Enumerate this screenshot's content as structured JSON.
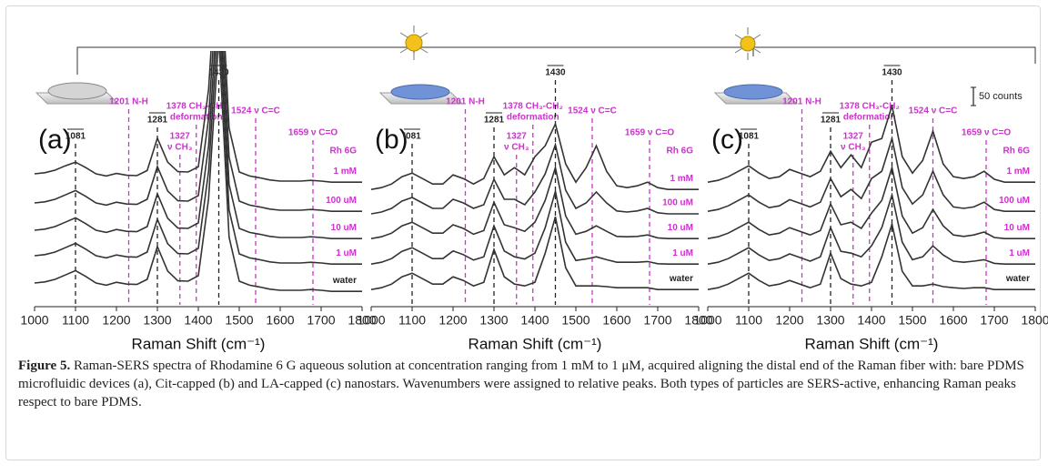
{
  "chart_data": [
    {
      "type": "line",
      "panel_label": "(a)",
      "x_label": "Raman Shift (cm⁻¹)",
      "analyte_label": "Rh 6G",
      "xlim": [
        1000,
        1800
      ],
      "xticks": [
        1000,
        1100,
        1200,
        1300,
        1400,
        1500,
        1600,
        1700,
        1800
      ],
      "x": [
        1000,
        1025,
        1050,
        1075,
        1100,
        1125,
        1150,
        1175,
        1200,
        1225,
        1250,
        1275,
        1300,
        1325,
        1350,
        1375,
        1400,
        1425,
        1450,
        1475,
        1500,
        1525,
        1550,
        1575,
        1600,
        1625,
        1650,
        1675,
        1700,
        1725,
        1750,
        1775,
        1800
      ],
      "annotations": [
        {
          "x": 1100,
          "label": [
            "1081"
          ],
          "color": "#222222"
        },
        {
          "x": 1230,
          "label": [
            "1201 N-H"
          ],
          "color": "#cc33cc"
        },
        {
          "x": 1300,
          "label": [
            "1281"
          ],
          "color": "#222222"
        },
        {
          "x": 1355,
          "label": [
            "1327",
            "ν CH₃"
          ],
          "color": "#cc33cc"
        },
        {
          "x": 1395,
          "label": [
            "1378 CH₃-CH₂",
            "deformation"
          ],
          "color": "#cc33cc"
        },
        {
          "x": 1450,
          "label": [
            "1430"
          ],
          "color": "#222222"
        },
        {
          "x": 1540,
          "label": [
            "1524 ν C=C"
          ],
          "color": "#cc33cc"
        },
        {
          "x": 1680,
          "label": [
            "1659 ν C=O"
          ],
          "color": "#cc33cc"
        }
      ],
      "series": [
        {
          "name": "1 mM",
          "color": "#333333",
          "label_color": "#cc33cc",
          "values": [
            360,
            363,
            370,
            382,
            392,
            377,
            360,
            354,
            361,
            356,
            355,
            369,
            458,
            392,
            366,
            365,
            379,
            592,
            1037,
            486,
            365,
            354,
            349,
            343,
            340,
            340,
            340,
            342,
            340,
            337,
            337,
            337,
            337
          ]
        },
        {
          "name": "100 uM",
          "color": "#333333",
          "label_color": "#cc33cc",
          "values": [
            280,
            283,
            290,
            302,
            314,
            298,
            280,
            274,
            282,
            277,
            276,
            290,
            380,
            313,
            286,
            285,
            300,
            512,
            957,
            406,
            285,
            274,
            269,
            263,
            260,
            260,
            260,
            262,
            260,
            257,
            257,
            257,
            257
          ]
        },
        {
          "name": "10 uM",
          "color": "#333333",
          "label_color": "#cc33cc",
          "values": [
            205,
            208,
            215,
            227,
            239,
            223,
            205,
            199,
            207,
            202,
            201,
            215,
            305,
            238,
            211,
            210,
            225,
            437,
            882,
            331,
            210,
            199,
            194,
            188,
            185,
            185,
            185,
            187,
            185,
            182,
            182,
            182,
            182
          ]
        },
        {
          "name": "1 uM",
          "color": "#333333",
          "label_color": "#cc33cc",
          "values": [
            135,
            138,
            145,
            157,
            169,
            153,
            135,
            129,
            137,
            132,
            131,
            145,
            235,
            168,
            141,
            140,
            155,
            367,
            812,
            261,
            140,
            129,
            124,
            118,
            115,
            115,
            115,
            117,
            115,
            112,
            112,
            112,
            112
          ]
        },
        {
          "name": "water",
          "color": "#333333",
          "label_color": "#222222",
          "values": [
            60,
            63,
            70,
            82,
            94,
            78,
            60,
            54,
            62,
            57,
            56,
            70,
            160,
            93,
            66,
            65,
            80,
            292,
            737,
            186,
            65,
            54,
            49,
            43,
            40,
            40,
            40,
            42,
            40,
            37,
            37,
            37,
            37
          ]
        }
      ]
    },
    {
      "type": "line",
      "panel_label": "(b)",
      "x_label": "Raman Shift (cm⁻¹)",
      "analyte_label": "Rh 6G",
      "xlim": [
        1000,
        1800
      ],
      "xticks": [
        1000,
        1100,
        1200,
        1300,
        1400,
        1500,
        1600,
        1700,
        1800
      ],
      "x": [
        1000,
        1025,
        1050,
        1075,
        1100,
        1125,
        1150,
        1175,
        1200,
        1225,
        1250,
        1275,
        1300,
        1325,
        1350,
        1375,
        1400,
        1425,
        1450,
        1475,
        1500,
        1525,
        1550,
        1575,
        1600,
        1625,
        1650,
        1675,
        1700,
        1725,
        1750,
        1775,
        1800
      ],
      "annotations": [
        {
          "x": 1100,
          "label": [
            "I081"
          ],
          "color": "#222222"
        },
        {
          "x": 1230,
          "label": [
            "1201 N-H"
          ],
          "color": "#cc33cc"
        },
        {
          "x": 1300,
          "label": [
            "1281"
          ],
          "color": "#222222"
        },
        {
          "x": 1355,
          "label": [
            "1327",
            "ν CH₃"
          ],
          "color": "#cc33cc"
        },
        {
          "x": 1395,
          "label": [
            "1378 CH₃-CH₂",
            "deformation"
          ],
          "color": "#cc33cc"
        },
        {
          "x": 1450,
          "label": [
            "1430"
          ],
          "color": "#222222"
        },
        {
          "x": 1540,
          "label": [
            "1524 ν C=C"
          ],
          "color": "#cc33cc"
        },
        {
          "x": 1680,
          "label": [
            "1659 ν C=O"
          ],
          "color": "#cc33cc"
        }
      ],
      "series": [
        {
          "name": "1 mM",
          "color": "#333333",
          "label_color": "#cc33cc",
          "values": [
            317,
            322,
            332,
            352,
            362,
            347,
            332,
            332,
            357,
            347,
            332,
            347,
            407,
            357,
            377,
            357,
            407,
            437,
            497,
            387,
            337,
            377,
            437,
            367,
            327,
            322,
            327,
            337,
            322,
            317,
            317,
            317,
            317
          ]
        },
        {
          "name": "100 uM",
          "color": "#333333",
          "label_color": "#cc33cc",
          "values": [
            250,
            255,
            265,
            285,
            295,
            280,
            265,
            265,
            290,
            280,
            265,
            275,
            345,
            290,
            290,
            275,
            310,
            360,
            440,
            315,
            265,
            280,
            310,
            280,
            258,
            255,
            258,
            265,
            253,
            250,
            250,
            250,
            250
          ]
        },
        {
          "name": "10 uM",
          "color": "#333333",
          "label_color": "#cc33cc",
          "values": [
            182,
            187,
            197,
            217,
            227,
            212,
            197,
            197,
            220,
            210,
            194,
            204,
            282,
            220,
            212,
            202,
            227,
            287,
            377,
            244,
            194,
            202,
            217,
            202,
            188,
            187,
            188,
            192,
            184,
            182,
            182,
            182,
            182
          ]
        },
        {
          "name": "1 uM",
          "color": "#333333",
          "label_color": "#cc33cc",
          "values": [
            112,
            117,
            127,
            147,
            157,
            142,
            127,
            127,
            148,
            138,
            123,
            132,
            217,
            148,
            132,
            126,
            142,
            212,
            312,
            172,
            122,
            126,
            132,
            124,
            117,
            117,
            117,
            119,
            113,
            112,
            112,
            112,
            112
          ]
        },
        {
          "name": "water",
          "color": "#333333",
          "label_color": "#222222",
          "values": [
            42,
            47,
            57,
            77,
            87,
            72,
            57,
            57,
            77,
            67,
            52,
            62,
            152,
            77,
            57,
            52,
            62,
            142,
            242,
            102,
            52,
            52,
            52,
            50,
            47,
            47,
            47,
            47,
            42,
            42,
            42,
            42,
            42
          ]
        }
      ]
    },
    {
      "type": "line",
      "panel_label": "(c)",
      "x_label": "Raman Shift (cm⁻¹)",
      "analyte_label": "Rh 6G",
      "scale_bar": {
        "value": 50,
        "label": "50 counts"
      },
      "xlim": [
        1000,
        1800
      ],
      "xticks": [
        1000,
        1100,
        1200,
        1300,
        1400,
        1500,
        1600,
        1700,
        1800
      ],
      "x": [
        1000,
        1025,
        1050,
        1075,
        1100,
        1125,
        1150,
        1175,
        1200,
        1225,
        1250,
        1275,
        1300,
        1325,
        1350,
        1375,
        1400,
        1425,
        1450,
        1475,
        1500,
        1525,
        1550,
        1575,
        1600,
        1625,
        1650,
        1675,
        1700,
        1725,
        1750,
        1775,
        1800
      ],
      "annotations": [
        {
          "x": 1100,
          "label": [
            "1081"
          ],
          "color": "#222222"
        },
        {
          "x": 1230,
          "label": [
            "1201 N-H"
          ],
          "color": "#cc33cc"
        },
        {
          "x": 1300,
          "label": [
            "1281"
          ],
          "color": "#222222"
        },
        {
          "x": 1355,
          "label": [
            "1327",
            "ν CH₃"
          ],
          "color": "#cc33cc"
        },
        {
          "x": 1395,
          "label": [
            "1378 CH₃-CH₂",
            "deformation"
          ],
          "color": "#cc33cc"
        },
        {
          "x": 1450,
          "label": [
            "1430"
          ],
          "color": "#222222"
        },
        {
          "x": 1550,
          "label": [
            "1524 ν C=C"
          ],
          "color": "#cc33cc"
        },
        {
          "x": 1680,
          "label": [
            "1659 ν C=O"
          ],
          "color": "#cc33cc"
        }
      ],
      "series": [
        {
          "name": "1 mM",
          "color": "#333333",
          "label_color": "#cc33cc",
          "values": [
            337,
            342,
            352,
            367,
            382,
            362,
            347,
            352,
            372,
            362,
            352,
            367,
            422,
            377,
            412,
            377,
            447,
            457,
            547,
            407,
            362,
            397,
            477,
            387,
            352,
            347,
            352,
            367,
            345,
            337,
            337,
            337,
            337
          ]
        },
        {
          "name": "100 uM",
          "color": "#333333",
          "label_color": "#cc33cc",
          "values": [
            257,
            262,
            272,
            287,
            302,
            282,
            267,
            272,
            289,
            279,
            269,
            282,
            347,
            297,
            317,
            292,
            347,
            367,
            457,
            322,
            277,
            302,
            367,
            302,
            269,
            265,
            269,
            282,
            262,
            257,
            257,
            257,
            257
          ]
        },
        {
          "name": "10 uM",
          "color": "#333333",
          "label_color": "#cc33cc",
          "values": [
            182,
            187,
            197,
            212,
            227,
            207,
            192,
            197,
            212,
            202,
            192,
            204,
            277,
            220,
            227,
            210,
            252,
            287,
            377,
            244,
            197,
            212,
            262,
            217,
            192,
            188,
            192,
            200,
            185,
            182,
            182,
            182,
            182
          ]
        },
        {
          "name": "1 uM",
          "color": "#333333",
          "label_color": "#cc33cc",
          "values": [
            112,
            117,
            127,
            142,
            157,
            137,
            122,
            127,
            140,
            130,
            120,
            132,
            212,
            147,
            142,
            132,
            162,
            212,
            302,
            172,
            124,
            132,
            162,
            137,
            120,
            117,
            120,
            124,
            114,
            112,
            112,
            112,
            112
          ]
        },
        {
          "name": "water",
          "color": "#333333",
          "label_color": "#222222",
          "values": [
            42,
            47,
            57,
            72,
            87,
            67,
            52,
            57,
            67,
            57,
            47,
            57,
            142,
            72,
            57,
            52,
            62,
            132,
            222,
            92,
            52,
            52,
            57,
            50,
            47,
            45,
            47,
            47,
            42,
            42,
            42,
            42,
            42
          ]
        }
      ]
    }
  ],
  "caption": {
    "label": "Figure 5.",
    "text": "Raman-SERS spectra of Rhodamine 6 G aqueous solution at concentration ranging from 1 mM to 1 μM, acquired aligning the distal end of the Raman fiber with: bare PDMS microfluidic devices (a), Cit-capped (b) and LA-capped (c) nanostars. Wavenumbers were assigned to relative peaks. Both types of particles are SERS-active, enhancing Raman peaks respect to bare PDMS."
  }
}
